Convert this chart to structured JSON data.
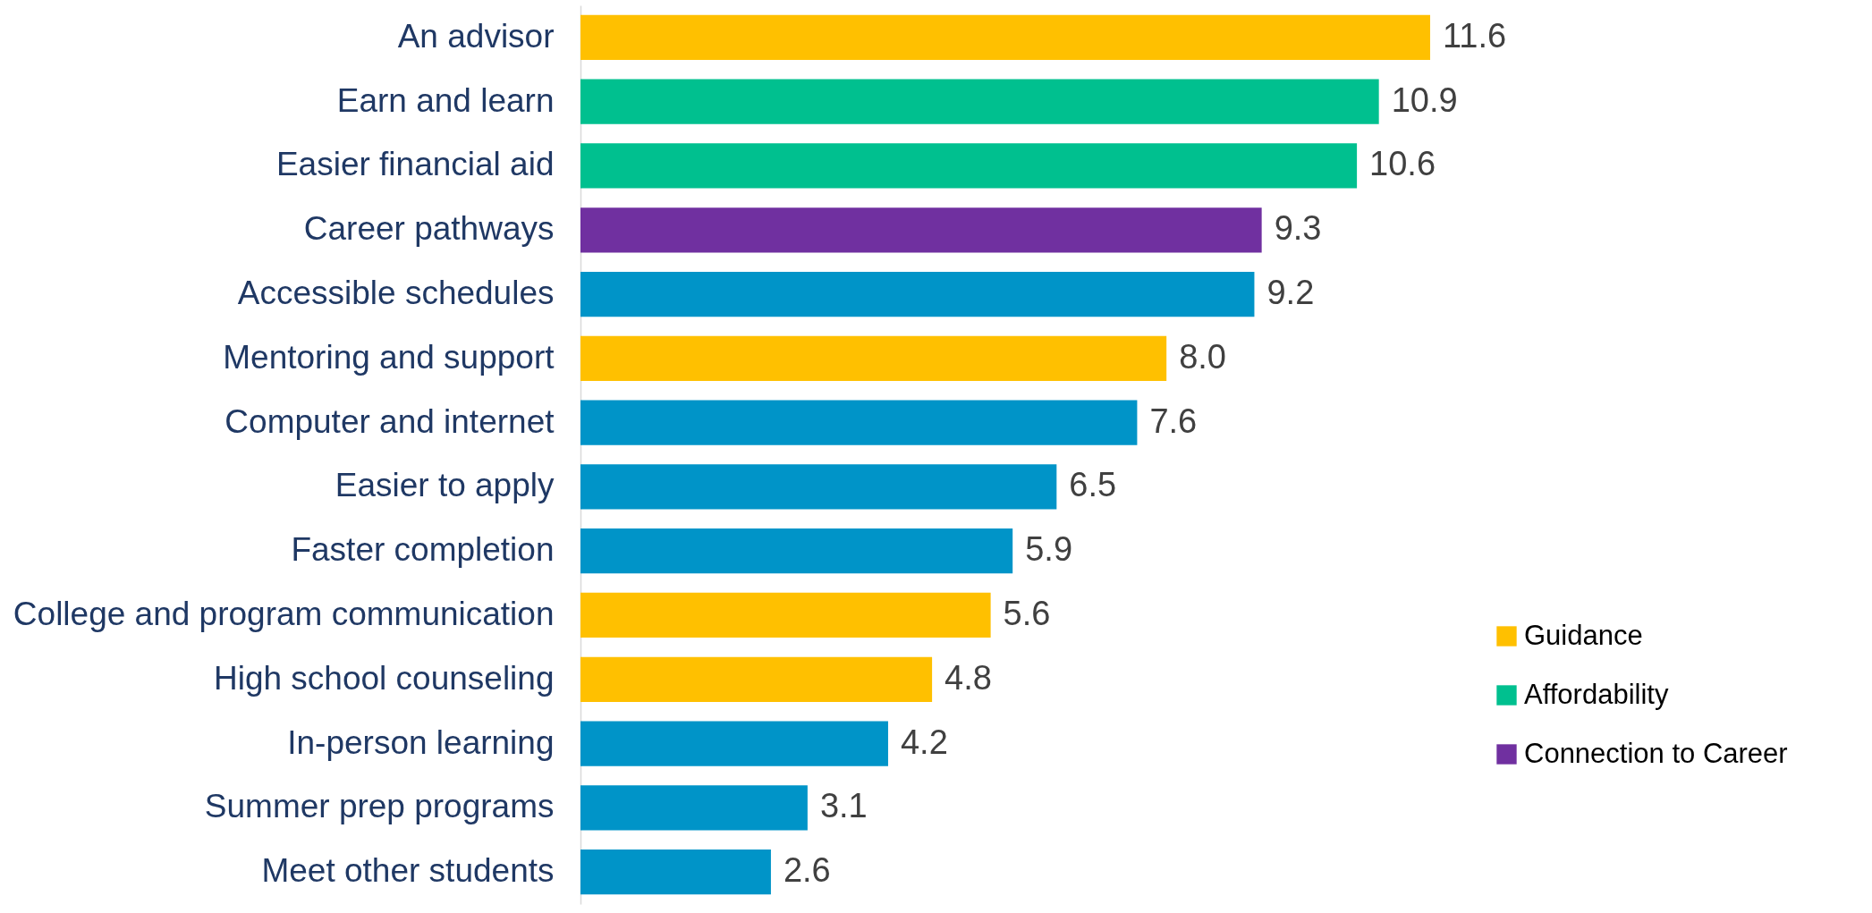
{
  "chart_data": {
    "type": "bar",
    "orientation": "horizontal",
    "categories": [
      "An advisor",
      "Earn and learn",
      "Easier financial aid ",
      "Career pathways ",
      "Accessible schedules",
      "Mentoring and support",
      "Computer and internet",
      "Easier to apply",
      "Faster completion",
      "College and program communication",
      "High school counseling",
      "In-person learning",
      "Summer prep programs",
      "Meet other students"
    ],
    "series": [
      {
        "name": "Guidance",
        "color": "#ffc000",
        "values": [
          11.6,
          null,
          null,
          null,
          null,
          8.0,
          null,
          null,
          null,
          5.6,
          4.8,
          null,
          null,
          null
        ],
        "value_labels": [
          "11.6",
          null,
          null,
          null,
          null,
          "8.0",
          null,
          null,
          null,
          "5.6",
          "4.8",
          null,
          null,
          null
        ]
      },
      {
        "name": "Affordability",
        "color": "#00c08f",
        "values": [
          null,
          10.9,
          10.6,
          null,
          null,
          null,
          null,
          null,
          null,
          null,
          null,
          null,
          null,
          null
        ],
        "value_labels": [
          null,
          "10.9",
          "10.6",
          null,
          null,
          null,
          null,
          null,
          null,
          null,
          null,
          null,
          null,
          null
        ]
      },
      {
        "name": "Connection to Career",
        "color": "#7030a0",
        "values": [
          null,
          null,
          null,
          9.3,
          null,
          null,
          null,
          null,
          null,
          null,
          null,
          null,
          null,
          null
        ],
        "value_labels": [
          null,
          null,
          null,
          "9.3",
          null,
          null,
          null,
          null,
          null,
          null,
          null,
          null,
          null,
          null
        ]
      },
      {
        "color": "#0094c8",
        "values": [
          null,
          null,
          null,
          null,
          9.2,
          null,
          7.6,
          6.5,
          5.9,
          null,
          null,
          4.2,
          3.1,
          2.6
        ],
        "value_labels": [
          null,
          null,
          null,
          null,
          "9.2",
          null,
          "7.6",
          "6.5",
          "5.9",
          null,
          null,
          "4.2",
          "3.1",
          "2.6"
        ]
      }
    ],
    "tick_labels": "y",
    "legend": "bottom right"
  }
}
